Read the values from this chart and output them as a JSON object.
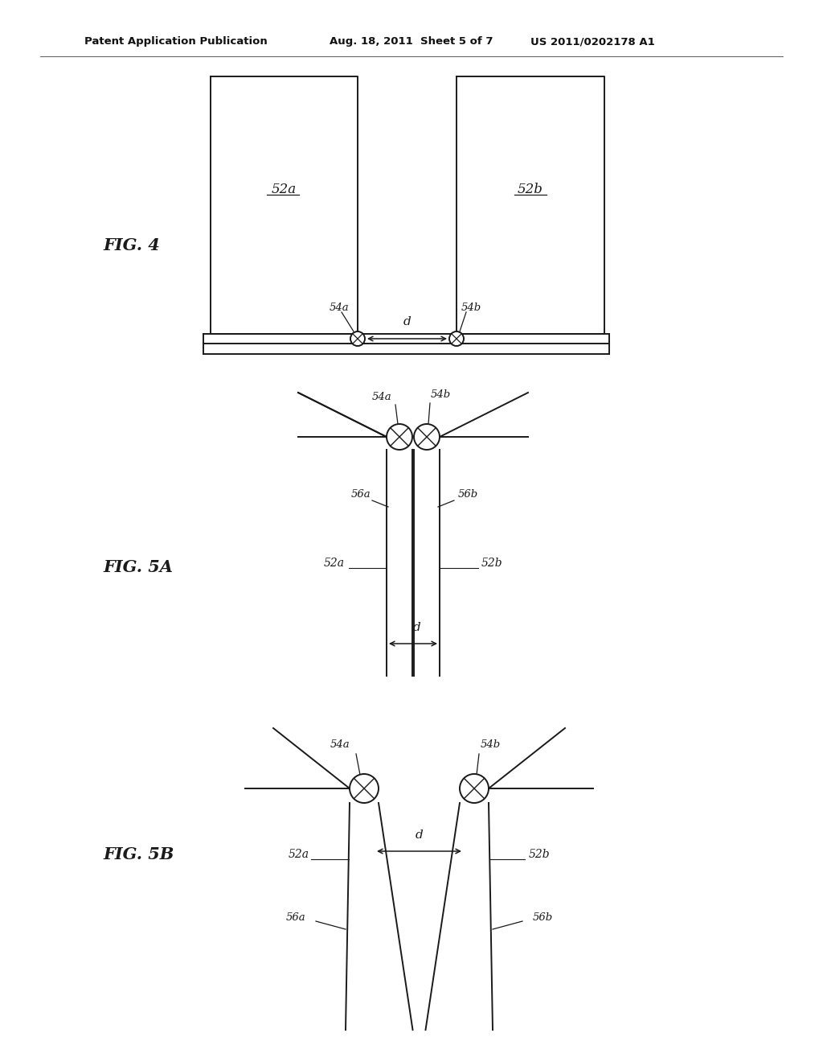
{
  "bg_color": "#ffffff",
  "line_color": "#1a1a1a",
  "lw": 1.4,
  "header_left": "Patent Application Publication",
  "header_mid": "Aug. 18, 2011  Sheet 5 of 7",
  "header_right": "US 2011/0202178 A1",
  "fig4_label": "FIG. 4",
  "fig5a_label": "FIG. 5A",
  "fig5b_label": "FIG. 5B",
  "label_52a": "52a",
  "label_52b": "52b",
  "label_54a": "54a",
  "label_54b": "54b",
  "label_56a": "56a",
  "label_56b": "56b",
  "label_d": "d"
}
